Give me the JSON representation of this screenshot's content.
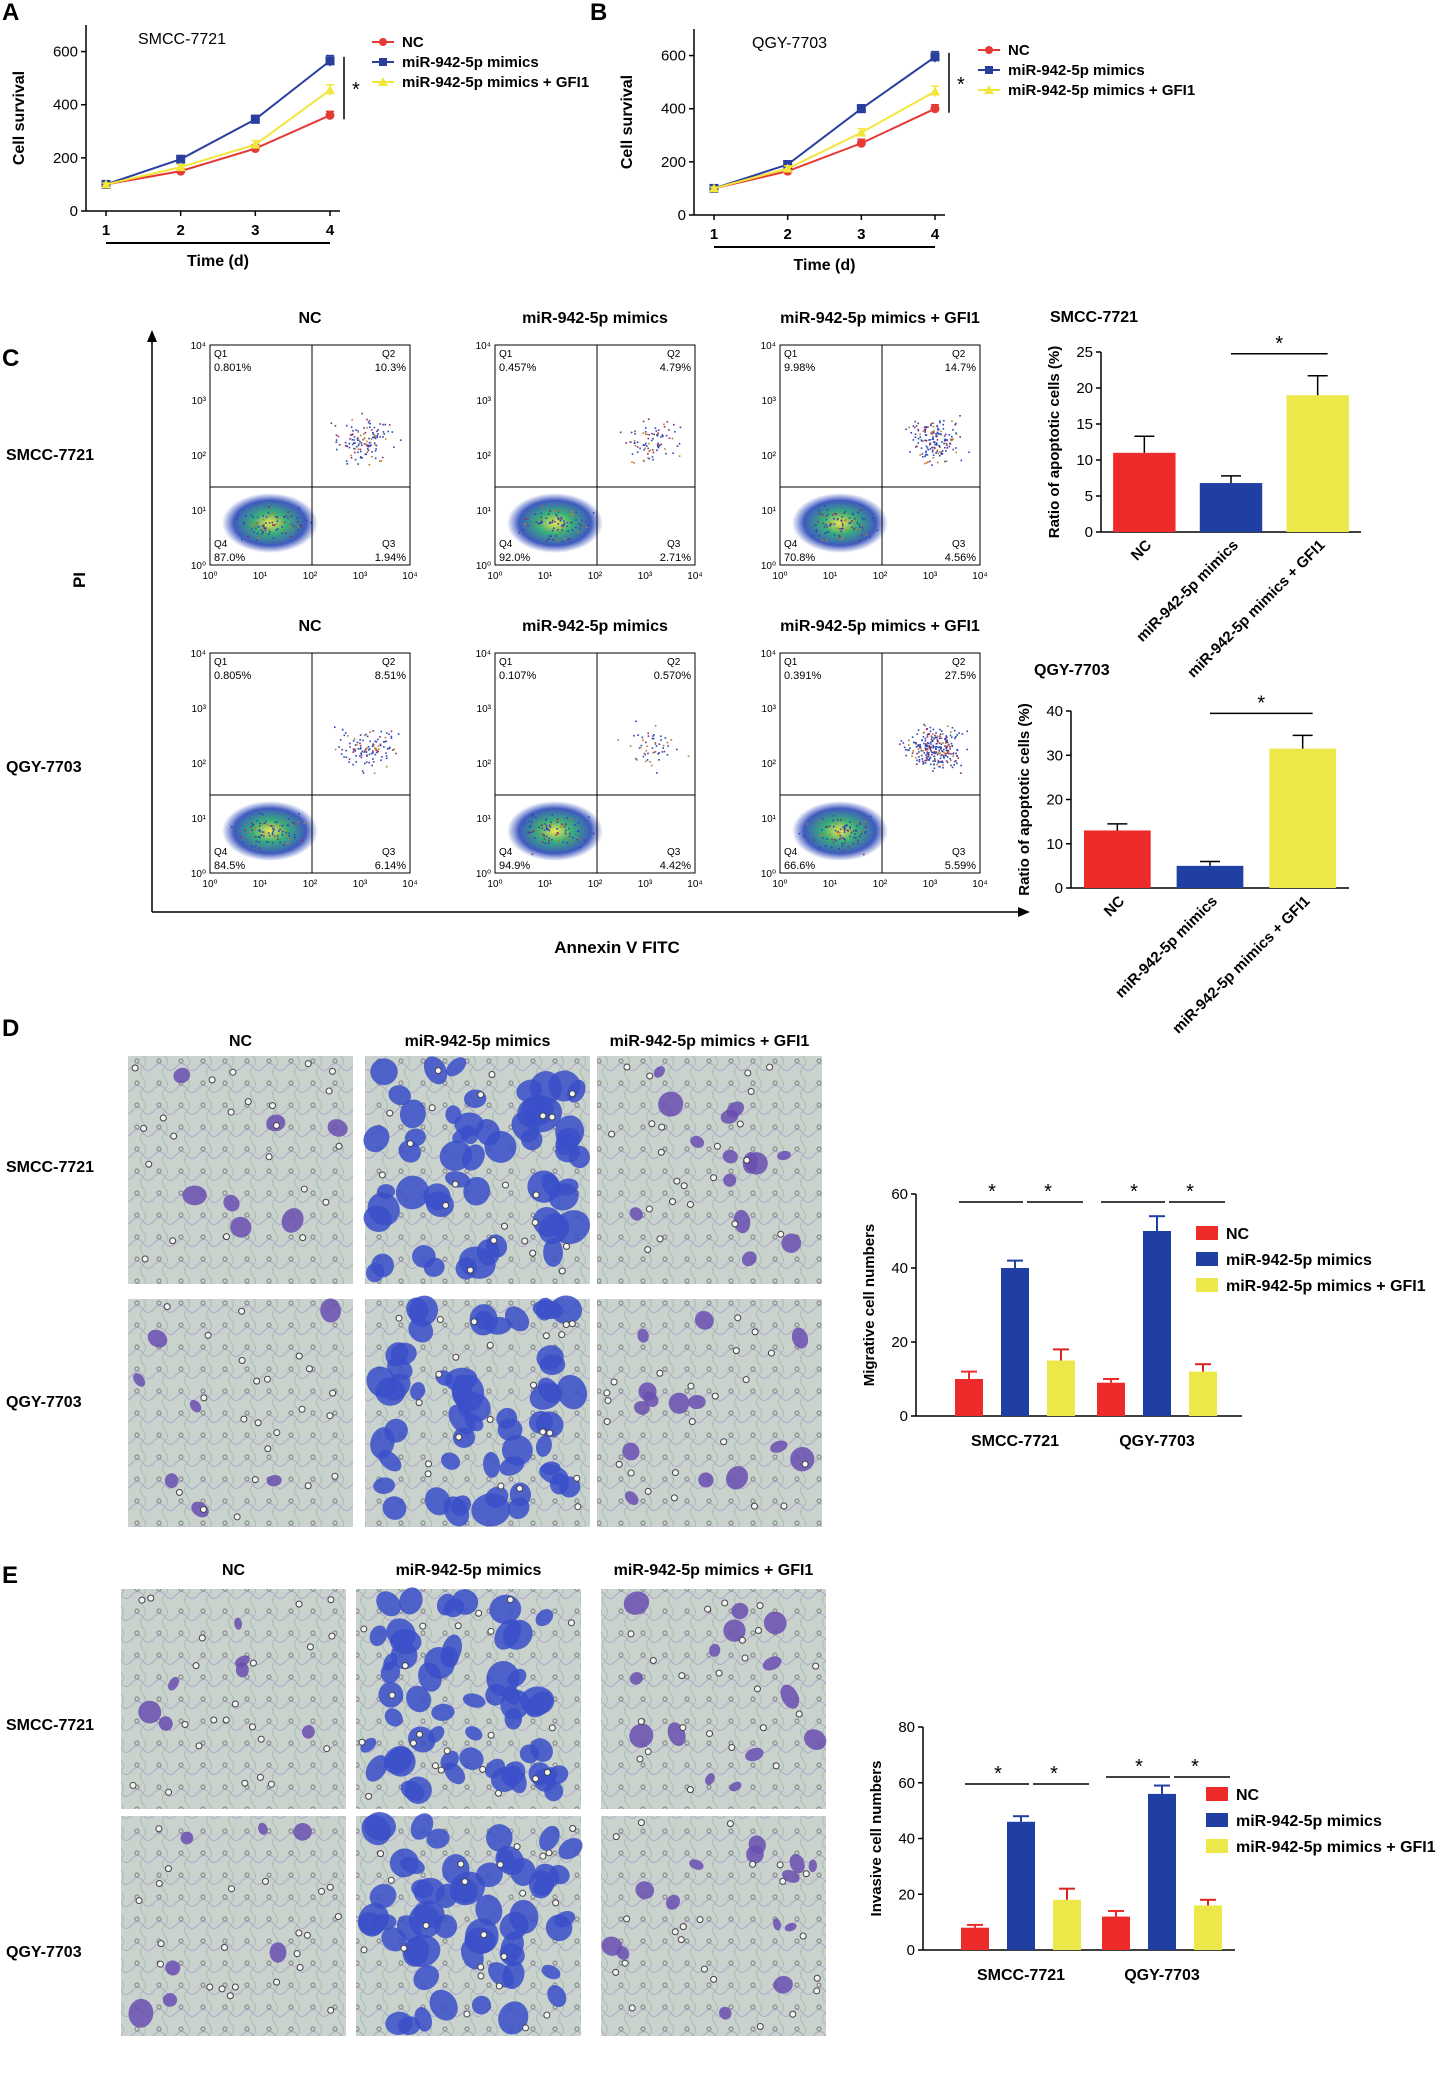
{
  "panels": {
    "A": {
      "letter": "A",
      "chart_data": {
        "type": "line",
        "title": "SMCC-7721",
        "xlabel": "Time (d)",
        "ylabel": "Cell survival",
        "x": [
          1,
          2,
          3,
          4
        ],
        "xticks": [
          "1",
          "2",
          "3",
          "4"
        ],
        "ylim": [
          0,
          700
        ],
        "yticks": [
          "0",
          "200",
          "400",
          "600"
        ],
        "series": [
          {
            "name": "NC",
            "values": [
              100,
              150,
              235,
              360
            ],
            "err": [
              5,
              10,
              15,
              15
            ],
            "color": "#e53935",
            "marker": "circle"
          },
          {
            "name": "miR-942-5p mimics",
            "values": [
              100,
              195,
              345,
              565
            ],
            "err": [
              5,
              10,
              15,
              20
            ],
            "color": "#2a3f9d",
            "marker": "square"
          },
          {
            "name": "miR-942-5p mimics + GFI1",
            "values": [
              100,
              165,
              250,
              455
            ],
            "err": [
              5,
              10,
              15,
              20
            ],
            "color": "#f2e63a",
            "marker": "triangle"
          }
        ],
        "significance": "*"
      }
    },
    "B": {
      "letter": "B",
      "chart_data": {
        "type": "line",
        "title": "QGY-7703",
        "xlabel": "Time (d)",
        "ylabel": "Cell survival",
        "x": [
          1,
          2,
          3,
          4
        ],
        "xticks": [
          "1",
          "2",
          "3",
          "4"
        ],
        "ylim": [
          0,
          700
        ],
        "yticks": [
          "0",
          "200",
          "400",
          "600"
        ],
        "series": [
          {
            "name": "NC",
            "values": [
              100,
              165,
              270,
              400
            ],
            "err": [
              5,
              10,
              15,
              15
            ],
            "color": "#e53935",
            "marker": "circle"
          },
          {
            "name": "miR-942-5p mimics",
            "values": [
              100,
              190,
              400,
              595
            ],
            "err": [
              5,
              10,
              15,
              20
            ],
            "color": "#2a3f9d",
            "marker": "square"
          },
          {
            "name": "miR-942-5p mimics + GFI1",
            "values": [
              100,
              175,
              310,
              465
            ],
            "err": [
              5,
              10,
              15,
              20
            ],
            "color": "#f2e63a",
            "marker": "triangle"
          }
        ],
        "significance": "*"
      }
    },
    "C": {
      "letter": "C",
      "flow": {
        "ylabel": "PI",
        "xlabel": "Annexin V FITC",
        "axis_ticks": [
          "10⁰",
          "10¹",
          "10²",
          "10³",
          "10⁴"
        ],
        "rows": [
          {
            "cell_line": "SMCC-7721",
            "plots": [
              {
                "title": "NC",
                "q1": "0.801%",
                "q2": "10.3%",
                "q3": "1.94%",
                "q4": "87.0%"
              },
              {
                "title": "miR-942-5p mimics",
                "q1": "0.457%",
                "q2": "4.79%",
                "q3": "2.71%",
                "q4": "92.0%"
              },
              {
                "title": "miR-942-5p mimics + GFI1",
                "q1": "9.98%",
                "q2": "14.7%",
                "q3": "4.56%",
                "q4": "70.8%"
              }
            ]
          },
          {
            "cell_line": "QGY-7703",
            "plots": [
              {
                "title": "NC",
                "q1": "0.805%",
                "q2": "8.51%",
                "q3": "6.14%",
                "q4": "84.5%"
              },
              {
                "title": "miR-942-5p mimics",
                "q1": "0.107%",
                "q2": "0.570%",
                "q3": "4.42%",
                "q4": "94.9%"
              },
              {
                "title": "miR-942-5p mimics + GFI1",
                "q1": "0.391%",
                "q2": "27.5%",
                "q3": "5.59%",
                "q4": "66.6%"
              }
            ]
          }
        ],
        "quadrant_names": {
          "q1": "Q1",
          "q2": "Q2",
          "q3": "Q3",
          "q4": "Q4"
        }
      },
      "chart_data": [
        {
          "type": "bar",
          "title": "SMCC-7721",
          "ylabel": "Ratio of apoptotic cells (%)",
          "categories": [
            "NC",
            "miR-942-5p mimics",
            "miR-942-5p mimics + GFI1"
          ],
          "values": [
            11,
            6.8,
            19
          ],
          "err": [
            2.3,
            1.0,
            2.7
          ],
          "colors": [
            "#ee2b2b",
            "#1f3fa3",
            "#ece84a"
          ],
          "ylim": [
            0,
            25
          ],
          "yticks": [
            "0",
            "5",
            "10",
            "15",
            "20",
            "25"
          ],
          "significance": "*"
        },
        {
          "type": "bar",
          "title": "QGY-7703",
          "ylabel": "Ratio of apoptotic cells (%)",
          "categories": [
            "NC",
            "miR-942-5p mimics",
            "miR-942-5p mimics + GFI1"
          ],
          "values": [
            13,
            5,
            31.5
          ],
          "err": [
            1.5,
            1.0,
            3.0
          ],
          "colors": [
            "#ee2b2b",
            "#1f3fa3",
            "#ece84a"
          ],
          "ylim": [
            0,
            40
          ],
          "yticks": [
            "0",
            "10",
            "20",
            "30",
            "40"
          ],
          "significance": "*"
        }
      ]
    },
    "D": {
      "letter": "D",
      "images": {
        "columns": [
          "NC",
          "miR-942-5p mimics",
          "miR-942-5p mimics + GFI1"
        ],
        "rows": [
          "SMCC-7721",
          "QGY-7703"
        ]
      },
      "chart_data": {
        "type": "bar",
        "ylabel": "Migrative cell numbers",
        "categories": [
          "SMCC-7721",
          "QGY-7703"
        ],
        "ylim": [
          0,
          60
        ],
        "yticks": [
          "0",
          "20",
          "40",
          "60"
        ],
        "series": [
          {
            "name": "NC",
            "values": [
              10,
              9
            ],
            "err": [
              2,
              1
            ],
            "color": "#ee2b2b"
          },
          {
            "name": "miR-942-5p mimics",
            "values": [
              40,
              50
            ],
            "err": [
              2,
              4
            ],
            "color": "#1f3fa3"
          },
          {
            "name": "miR-942-5p mimics + GFI1",
            "values": [
              15,
              12
            ],
            "err": [
              3,
              2
            ],
            "color": "#ece84a"
          }
        ],
        "significance": "*"
      }
    },
    "E": {
      "letter": "E",
      "images": {
        "columns": [
          "NC",
          "miR-942-5p mimics",
          "miR-942-5p mimics + GFI1"
        ],
        "rows": [
          "SMCC-7721",
          "QGY-7703"
        ]
      },
      "chart_data": {
        "type": "bar",
        "ylabel": "Invasive cell numbers",
        "categories": [
          "SMCC-7721",
          "QGY-7703"
        ],
        "ylim": [
          0,
          80
        ],
        "yticks": [
          "0",
          "20",
          "40",
          "60",
          "80"
        ],
        "series": [
          {
            "name": "NC",
            "values": [
              8,
              12
            ],
            "err": [
              1,
              2
            ],
            "color": "#ee2b2b"
          },
          {
            "name": "miR-942-5p mimics",
            "values": [
              46,
              56
            ],
            "err": [
              2,
              3
            ],
            "color": "#1f3fa3"
          },
          {
            "name": "miR-942-5p mimics + GFI1",
            "values": [
              18,
              16
            ],
            "err": [
              4,
              2
            ],
            "color": "#ece84a"
          }
        ],
        "significance": "*"
      }
    }
  }
}
